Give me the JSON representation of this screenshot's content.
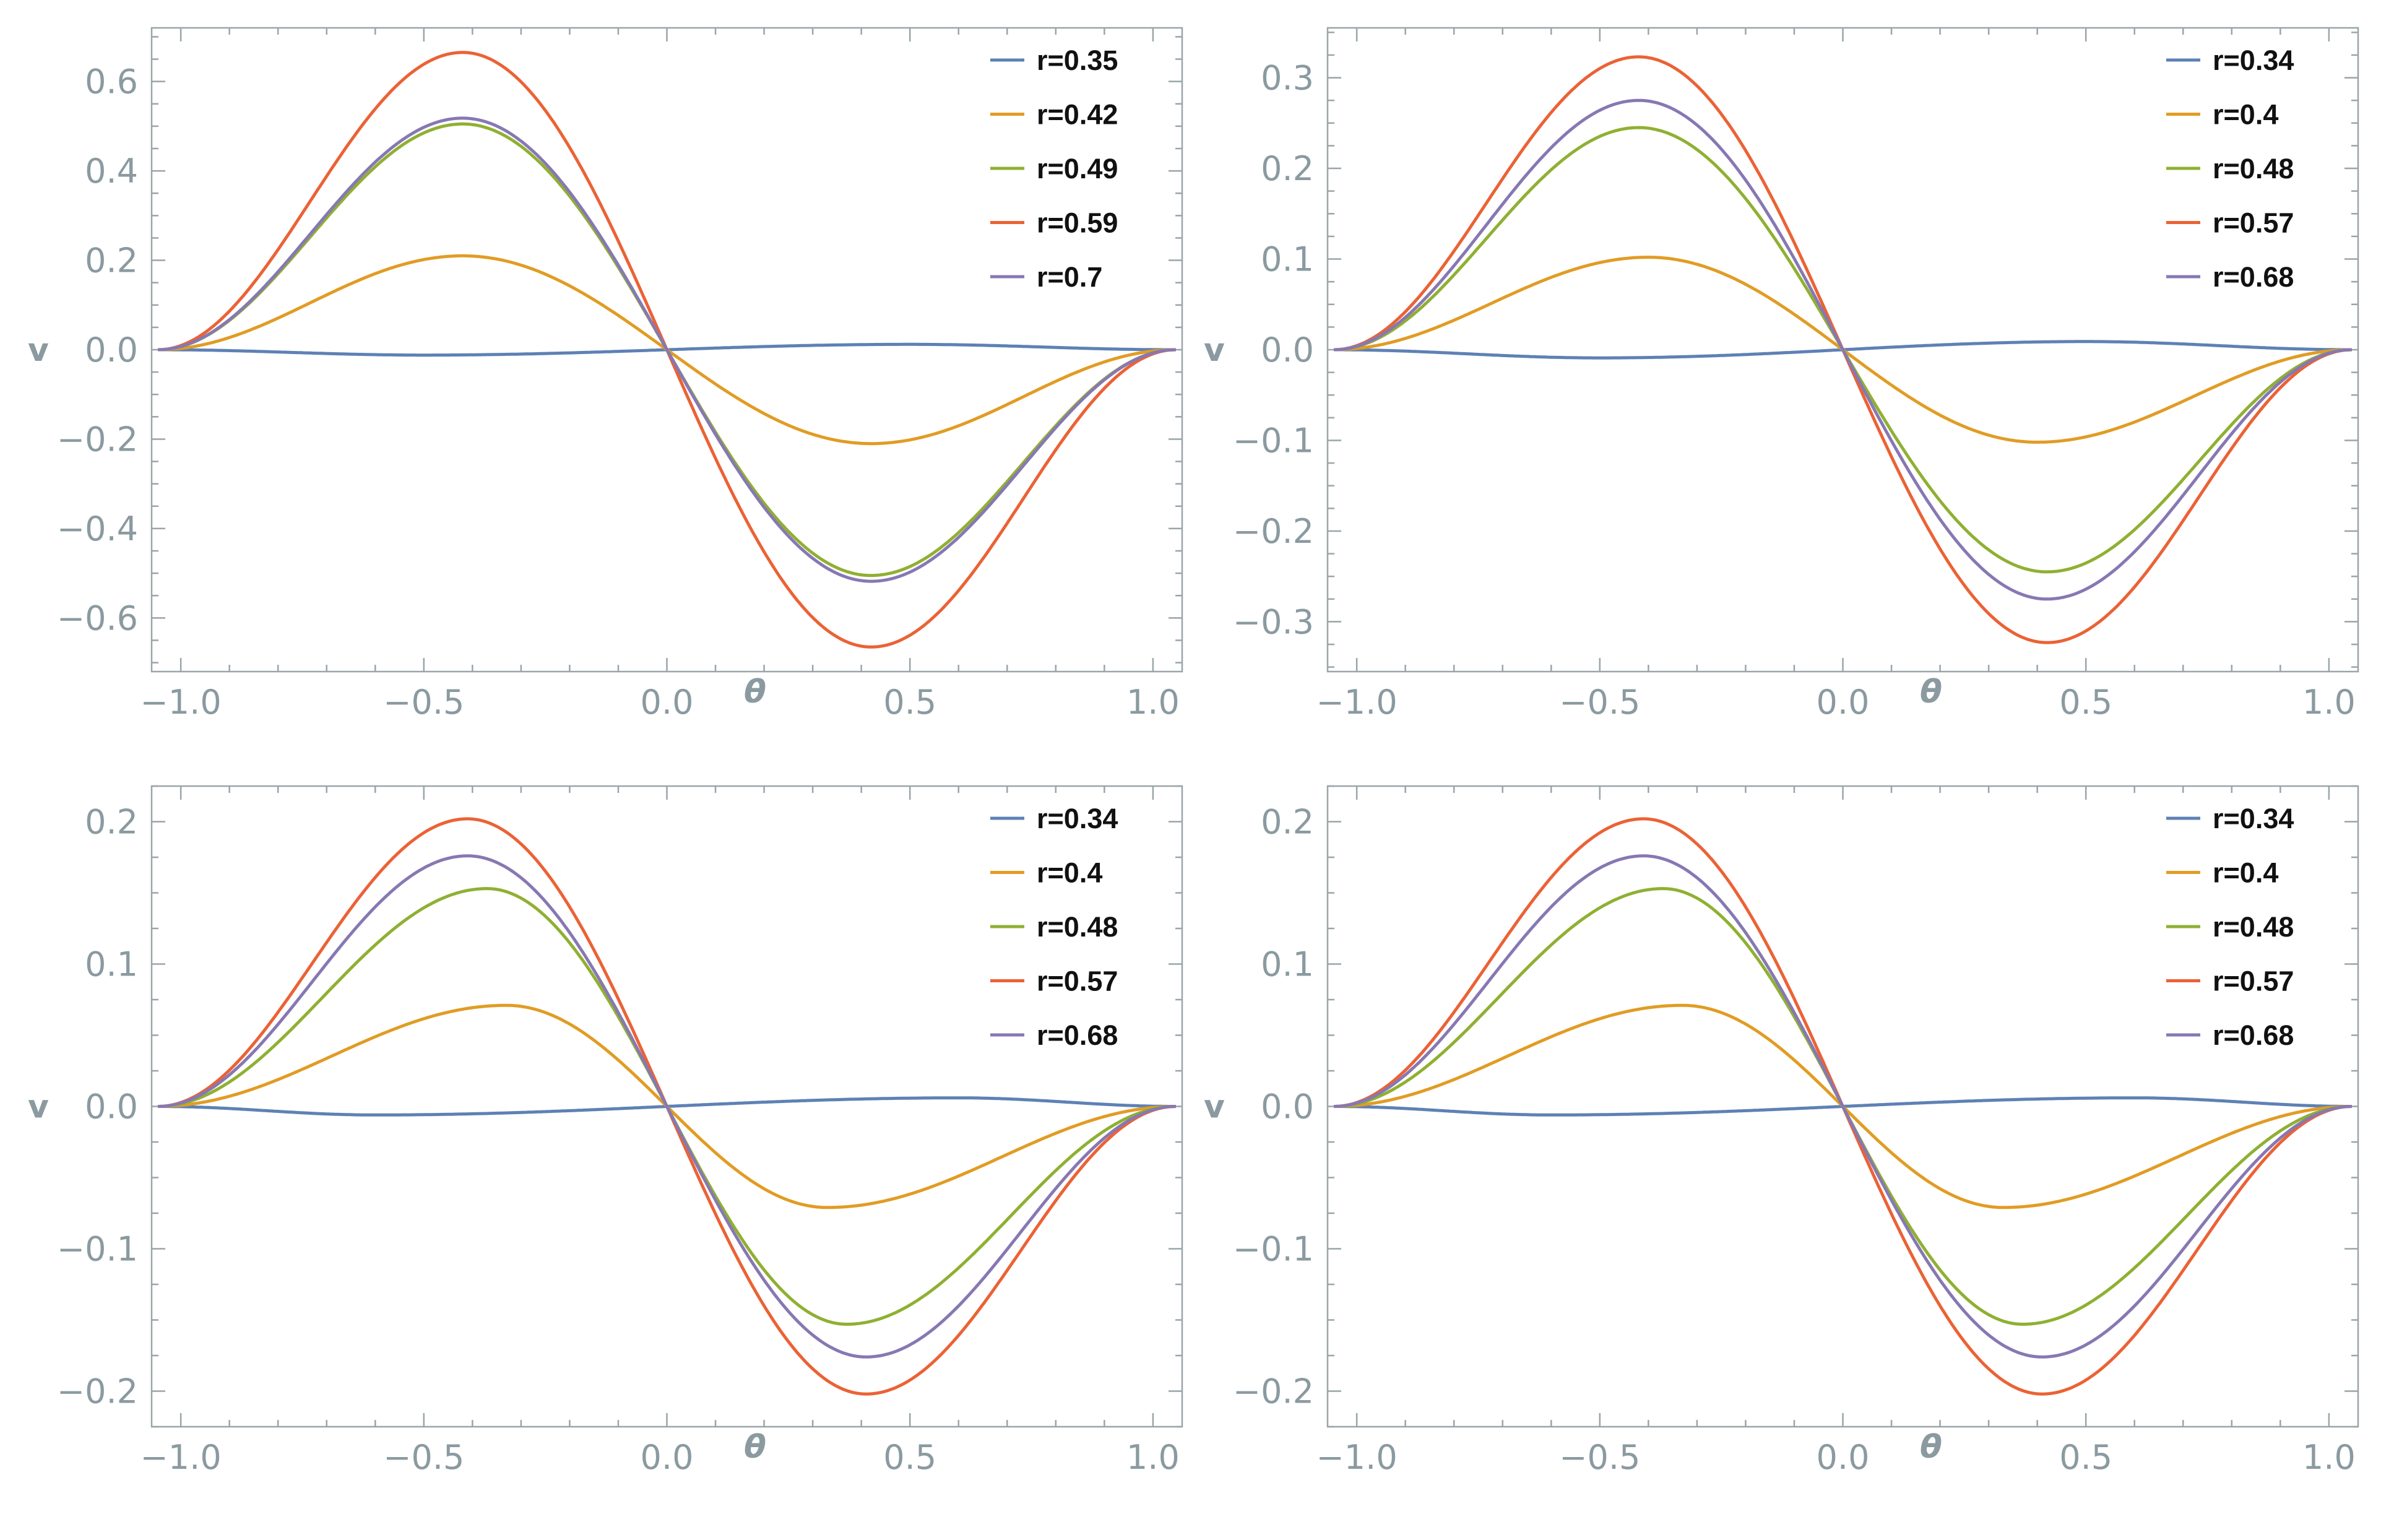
{
  "chart_data": [
    {
      "type": "line",
      "xlabel": "θ",
      "ylabel": "v",
      "xlim": [
        -1.06,
        1.06
      ],
      "ylim": [
        -0.72,
        0.72
      ],
      "xticks": [
        -1.0,
        -0.5,
        0.0,
        0.5,
        1.0
      ],
      "xtick_labels": [
        "−1.0",
        "−0.5",
        "0.0",
        "0.5",
        "1.0"
      ],
      "yticks": [
        -0.6,
        -0.4,
        -0.2,
        0.0,
        0.2,
        0.4,
        0.6
      ],
      "ytick_labels": [
        "−0.6",
        "−0.4",
        "−0.2",
        "0.0",
        "0.2",
        "0.4",
        "0.6"
      ],
      "legend_position": "top-right",
      "series": [
        {
          "name": "r=0.35",
          "color": "#5e81b5",
          "shape": "wave",
          "amplitude": -0.012,
          "peak_theta": 0.5
        },
        {
          "name": "r=0.42",
          "color": "#e19c24",
          "shape": "wave",
          "amplitude": 0.21,
          "peak_theta": 0.42
        },
        {
          "name": "r=0.49",
          "color": "#8fb032",
          "shape": "wave",
          "amplitude": 0.505,
          "peak_theta": 0.42
        },
        {
          "name": "r=0.59",
          "color": "#eb6235",
          "shape": "wave",
          "amplitude": 0.665,
          "peak_theta": 0.42
        },
        {
          "name": "r=0.7",
          "color": "#8778b3",
          "shape": "wave",
          "amplitude": 0.518,
          "peak_theta": 0.42
        }
      ]
    },
    {
      "type": "line",
      "xlabel": "θ",
      "ylabel": "v",
      "xlim": [
        -1.06,
        1.06
      ],
      "ylim": [
        -0.355,
        0.355
      ],
      "xticks": [
        -1.0,
        -0.5,
        0.0,
        0.5,
        1.0
      ],
      "xtick_labels": [
        "−1.0",
        "−0.5",
        "0.0",
        "0.5",
        "1.0"
      ],
      "yticks": [
        -0.3,
        -0.2,
        -0.1,
        0.0,
        0.1,
        0.2,
        0.3
      ],
      "ytick_labels": [
        "−0.3",
        "−0.2",
        "−0.1",
        "0.0",
        "0.1",
        "0.2",
        "0.3"
      ],
      "legend_position": "top-right",
      "series": [
        {
          "name": "r=0.34",
          "color": "#5e81b5",
          "shape": "wave",
          "amplitude": -0.009,
          "peak_theta": 0.5
        },
        {
          "name": "r=0.4",
          "color": "#e19c24",
          "shape": "wave",
          "amplitude": 0.102,
          "peak_theta": 0.4
        },
        {
          "name": "r=0.48",
          "color": "#8fb032",
          "shape": "wave",
          "amplitude": 0.245,
          "peak_theta": 0.42
        },
        {
          "name": "r=0.57",
          "color": "#eb6235",
          "shape": "wave",
          "amplitude": 0.323,
          "peak_theta": 0.42
        },
        {
          "name": "r=0.68",
          "color": "#8778b3",
          "shape": "wave",
          "amplitude": 0.275,
          "peak_theta": 0.42
        }
      ]
    },
    {
      "type": "line",
      "xlabel": "θ",
      "ylabel": "v",
      "xlim": [
        -1.06,
        1.06
      ],
      "ylim": [
        -0.225,
        0.225
      ],
      "xticks": [
        -1.0,
        -0.5,
        0.0,
        0.5,
        1.0
      ],
      "xtick_labels": [
        "−1.0",
        "−0.5",
        "0.0",
        "0.5",
        "1.0"
      ],
      "yticks": [
        -0.2,
        -0.1,
        0.0,
        0.1,
        0.2
      ],
      "ytick_labels": [
        "−0.2",
        "−0.1",
        "0.0",
        "0.1",
        "0.2"
      ],
      "legend_position": "top-right",
      "series": [
        {
          "name": "r=0.34",
          "color": "#5e81b5",
          "shape": "wave",
          "amplitude": -0.006,
          "peak_theta": 0.6
        },
        {
          "name": "r=0.4",
          "color": "#e19c24",
          "shape": "wave",
          "amplitude": 0.071,
          "peak_theta": 0.33
        },
        {
          "name": "r=0.48",
          "color": "#8fb032",
          "shape": "wave",
          "amplitude": 0.153,
          "peak_theta": 0.37
        },
        {
          "name": "r=0.57",
          "color": "#eb6235",
          "shape": "wave",
          "amplitude": 0.202,
          "peak_theta": 0.41
        },
        {
          "name": "r=0.68",
          "color": "#8778b3",
          "shape": "wave",
          "amplitude": 0.176,
          "peak_theta": 0.41
        }
      ]
    },
    {
      "type": "line",
      "xlabel": "θ",
      "ylabel": "v",
      "xlim": [
        -1.06,
        1.06
      ],
      "ylim": [
        -0.225,
        0.225
      ],
      "xticks": [
        -1.0,
        -0.5,
        0.0,
        0.5,
        1.0
      ],
      "xtick_labels": [
        "−1.0",
        "−0.5",
        "0.0",
        "0.5",
        "1.0"
      ],
      "yticks": [
        -0.2,
        -0.1,
        0.0,
        0.1,
        0.2
      ],
      "ytick_labels": [
        "−0.2",
        "−0.1",
        "0.0",
        "0.1",
        "0.2"
      ],
      "legend_position": "top-right",
      "series": [
        {
          "name": "r=0.34",
          "color": "#5e81b5",
          "shape": "wave",
          "amplitude": -0.006,
          "peak_theta": 0.6
        },
        {
          "name": "r=0.4",
          "color": "#e19c24",
          "shape": "wave",
          "amplitude": 0.071,
          "peak_theta": 0.33
        },
        {
          "name": "r=0.48",
          "color": "#8fb032",
          "shape": "wave",
          "amplitude": 0.153,
          "peak_theta": 0.37
        },
        {
          "name": "r=0.57",
          "color": "#eb6235",
          "shape": "wave",
          "amplitude": 0.202,
          "peak_theta": 0.41
        },
        {
          "name": "r=0.68",
          "color": "#8778b3",
          "shape": "wave",
          "amplitude": 0.176,
          "peak_theta": 0.41
        }
      ]
    }
  ]
}
